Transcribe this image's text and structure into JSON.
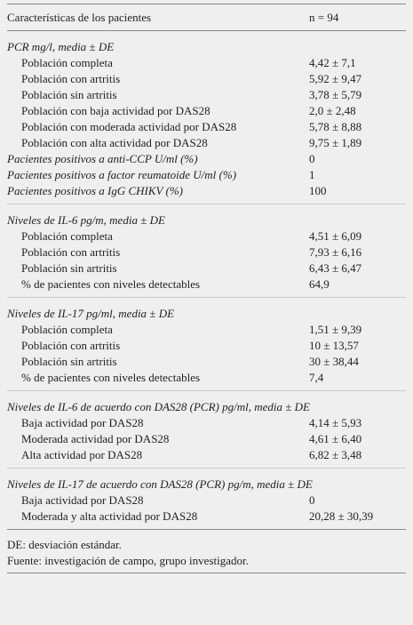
{
  "table": {
    "header": [
      "Características de los pacientes",
      "n = 94"
    ],
    "sections": [
      {
        "title": "PCR mg/l, media ± DE",
        "rows": [
          [
            "Población completa",
            "4,42 ± 7,1"
          ],
          [
            "Población con artritis",
            "5,92 ± 9,47"
          ],
          [
            "Población sin artritis",
            "3,78 ± 5,79"
          ],
          [
            "Población con baja actividad por DAS28",
            "2,0 ± 2,48"
          ],
          [
            "Población con moderada actividad por DAS28",
            "5,78 ± 8,88"
          ],
          [
            "Población con alta actividad por DAS28",
            "9,75 ± 1,89"
          ]
        ],
        "extra_rows": [
          [
            "Pacientes positivos a anti-CCP U/ml (%)",
            "0"
          ],
          [
            "Pacientes positivos a factor reumatoide U/ml (%)",
            "1"
          ],
          [
            "Pacientes positivos a IgG CHIKV (%)",
            "100"
          ]
        ]
      },
      {
        "title": "Niveles de IL-6 pg/m, media ± DE",
        "rows": [
          [
            "Población completa",
            "4,51 ± 6,09"
          ],
          [
            "Población con artritis",
            "7,93 ± 6,16"
          ],
          [
            "Población sin artritis",
            "6,43 ± 6,47"
          ],
          [
            "% de pacientes con niveles detectables",
            "64,9"
          ]
        ]
      },
      {
        "title": "Niveles de IL-17 pg/ml, media ± DE",
        "rows": [
          [
            "Población completa",
            "1,51 ± 9,39"
          ],
          [
            "Población con artritis",
            "10 ± 13,57"
          ],
          [
            "Población sin artritis",
            "30 ± 38,44"
          ],
          [
            "% de pacientes con niveles detectables",
            "7,4"
          ]
        ]
      },
      {
        "title": "Niveles de IL-6 de acuerdo con DAS28 (PCR) pg/ml, media ± DE",
        "rows": [
          [
            "Baja actividad por DAS28",
            "4,14 ± 5,93"
          ],
          [
            "Moderada actividad por DAS28",
            "4,61 ± 6,40"
          ],
          [
            "Alta actividad por DAS28",
            "6,82 ± 3,48"
          ]
        ]
      },
      {
        "title": "Niveles de IL-17 de acuerdo con DAS28 (PCR) pg/m, media ± DE",
        "rows": [
          [
            "Baja actividad por DAS28",
            "0"
          ],
          [
            "Moderada y alta actividad por DAS28",
            "20,28 ± 30,39"
          ]
        ]
      }
    ]
  },
  "notes": [
    "DE: desviación estándar.",
    "Fuente: investigación de campo, grupo investigador."
  ]
}
